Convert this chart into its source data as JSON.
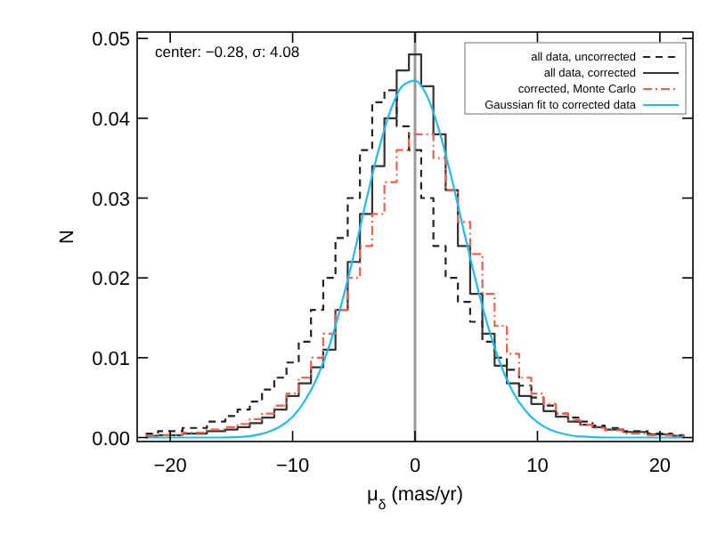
{
  "chart_data": {
    "type": "step",
    "xlabel": "μ$_{δ}$ (mas/yr)",
    "ylabel": "N",
    "annotations": [
      "center: −0.28, σ: 4.08"
    ],
    "xlim": [
      -22.7,
      22.7
    ],
    "ylim": [
      -0.0005,
      0.0508
    ],
    "xticks": [
      -20,
      -10,
      0,
      10,
      20
    ],
    "yticks": [
      {
        "value": 0,
        "label": "0.00"
      },
      {
        "value": 0.01,
        "label": "0.01"
      },
      {
        "value": 0.02,
        "label": "0.02"
      },
      {
        "value": 0.03,
        "label": "0.03"
      },
      {
        "value": 0.04,
        "label": "0.04"
      },
      {
        "value": 0.05,
        "label": "0.05"
      }
    ],
    "grid": false,
    "legend": "top right",
    "x": [
      -22,
      -20,
      -18,
      -16,
      -15,
      -14,
      -13,
      -12,
      -11,
      -10,
      -9,
      -8,
      -7,
      -6,
      -5,
      -4,
      -3,
      -2,
      -1,
      0,
      1,
      2,
      3,
      4,
      5,
      6,
      7,
      8,
      9,
      10,
      11,
      12,
      13,
      14,
      15,
      16,
      18,
      20,
      22
    ],
    "ref_lines": [
      {
        "axis": "x",
        "value": 0,
        "color": "#999999"
      }
    ],
    "series": [
      {
        "name": "all data, uncorrected",
        "color": "#222222",
        "line_style": "dashed",
        "values": [
          0.0005,
          0.0008,
          0.0012,
          0.002,
          0.0027,
          0.0035,
          0.0045,
          0.006,
          0.0075,
          0.0094,
          0.012,
          0.016,
          0.02,
          0.025,
          0.03,
          0.036,
          0.042,
          0.0435,
          0.039,
          0.036,
          0.03,
          0.024,
          0.02,
          0.017,
          0.0145,
          0.012,
          0.01,
          0.0085,
          0.0065,
          0.005,
          0.004,
          0.003,
          0.0025,
          0.002,
          0.0015,
          0.0012,
          0.0008,
          0.0005,
          0.0003
        ]
      },
      {
        "name": "all data, corrected",
        "color": "#333333",
        "line_style": "solid",
        "values": [
          0.0002,
          0.0003,
          0.0005,
          0.0008,
          0.001,
          0.0013,
          0.0018,
          0.0025,
          0.0035,
          0.0052,
          0.0068,
          0.0088,
          0.011,
          0.016,
          0.022,
          0.028,
          0.034,
          0.04,
          0.046,
          0.048,
          0.044,
          0.038,
          0.031,
          0.024,
          0.018,
          0.013,
          0.009,
          0.0068,
          0.0052,
          0.0042,
          0.0033,
          0.0026,
          0.002,
          0.0016,
          0.0013,
          0.001,
          0.0007,
          0.0004,
          0.0002
        ]
      },
      {
        "name": "corrected, Monte Carlo",
        "color": "#f0604a",
        "line_style": "dotted",
        "values": [
          0.0002,
          0.0003,
          0.0006,
          0.001,
          0.0013,
          0.0017,
          0.0023,
          0.003,
          0.004,
          0.0055,
          0.0075,
          0.01,
          0.013,
          0.016,
          0.02,
          0.024,
          0.028,
          0.032,
          0.036,
          0.038,
          0.038,
          0.035,
          0.031,
          0.027,
          0.023,
          0.018,
          0.014,
          0.0105,
          0.0075,
          0.0055,
          0.0042,
          0.003,
          0.0022,
          0.0016,
          0.0012,
          0.0009,
          0.0005,
          0.0003,
          0.0002
        ]
      },
      {
        "name": "Gaussian fit to corrected data",
        "type": "line",
        "color": "#22bbee",
        "line_style": "solid",
        "x": [
          -22,
          -16,
          -14,
          -13,
          -12,
          -11,
          -10,
          -9,
          -8,
          -7,
          -6,
          -5,
          -4,
          -3,
          -2,
          -1,
          0,
          1,
          2,
          3,
          4,
          5,
          6,
          7,
          8,
          9,
          10,
          11,
          12,
          13,
          14,
          16,
          22
        ],
        "values": [
          0,
          0,
          0.0001,
          0.0003,
          0.0007,
          0.0014,
          0.0026,
          0.0046,
          0.0075,
          0.0115,
          0.0168,
          0.0229,
          0.0296,
          0.0359,
          0.041,
          0.0441,
          0.0447,
          0.0427,
          0.0383,
          0.0324,
          0.0258,
          0.0194,
          0.0137,
          0.0091,
          0.0057,
          0.0034,
          0.0019,
          0.001,
          0.0005,
          0.0002,
          0.0001,
          0,
          0
        ]
      }
    ]
  }
}
